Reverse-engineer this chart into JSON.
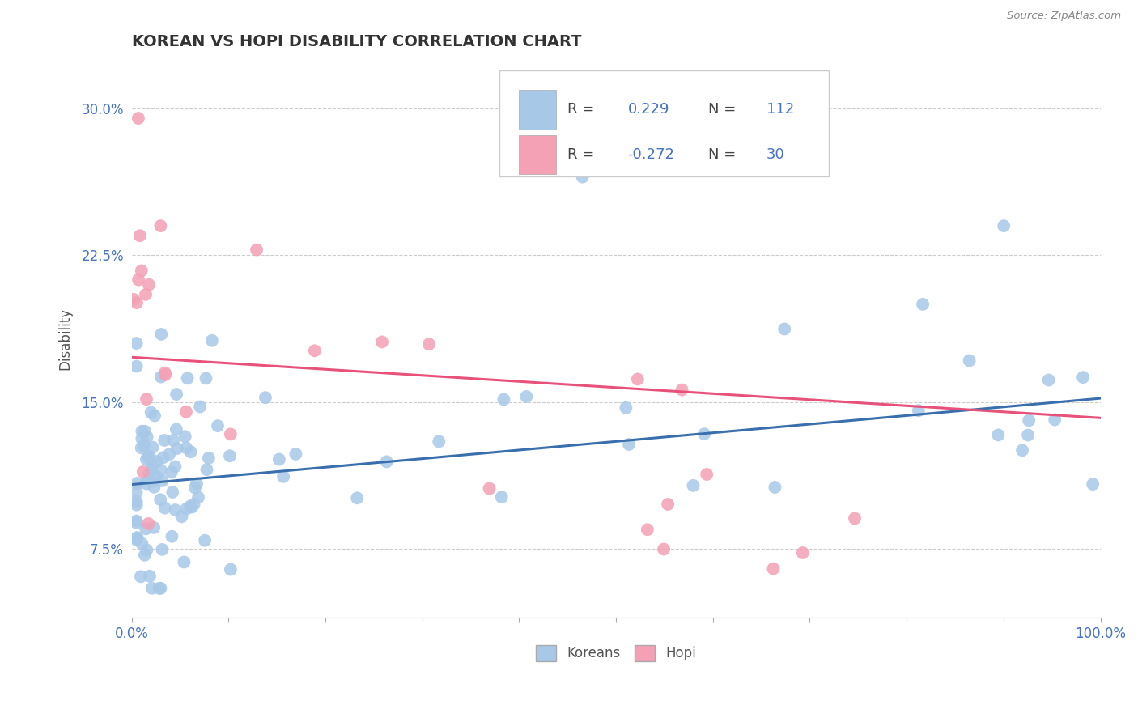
{
  "title": "KOREAN VS HOPI DISABILITY CORRELATION CHART",
  "source": "Source: ZipAtlas.com",
  "ylabel": "Disability",
  "xlim": [
    0,
    1
  ],
  "ylim": [
    0.04,
    0.325
  ],
  "yticks": [
    0.075,
    0.15,
    0.225,
    0.3
  ],
  "ytick_labels": [
    "7.5%",
    "15.0%",
    "22.5%",
    "30.0%"
  ],
  "korean_color": "#a8c8e8",
  "hopi_color": "#f4a0b5",
  "korean_line_color": "#3a6fad",
  "hopi_line_color": "#e8527a",
  "korean_R": 0.229,
  "korean_N": 112,
  "hopi_R": -0.272,
  "hopi_N": 30,
  "background_color": "#ffffff",
  "grid_color": "#cccccc",
  "legend_text_color": "#4472c4",
  "title_color": "#333333",
  "axis_label_color": "#555555",
  "source_color": "#888888",
  "korean_line_start_y": 0.108,
  "korean_line_end_y": 0.152,
  "hopi_line_start_y": 0.173,
  "hopi_line_end_y": 0.142
}
